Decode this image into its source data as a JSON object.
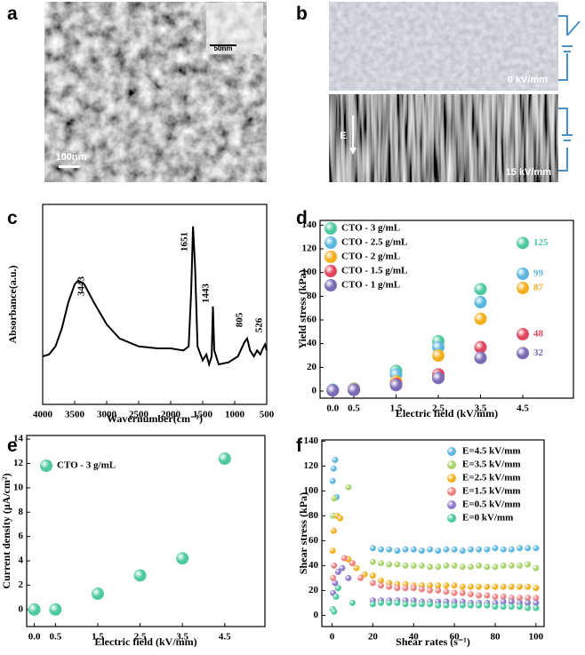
{
  "panel_labels": [
    "a",
    "b",
    "c",
    "d",
    "e",
    "f"
  ],
  "images": {
    "a": {
      "scale_bar": "100nm",
      "inset_scale": "50nm"
    },
    "b": {
      "top_label": "0 kV/mm",
      "bottom_label": "15 kV/mm",
      "field_label": "E"
    }
  },
  "chart_data": [
    {
      "type": "line",
      "x_label": "Wavernumber(cm⁻¹)",
      "y_label": "Absorbance(a.u.)",
      "color": "#000000",
      "x": [
        4000,
        3900,
        3800,
        3700,
        3600,
        3500,
        3443,
        3350,
        3200,
        3000,
        2800,
        2500,
        2200,
        2000,
        1800,
        1720,
        1680,
        1651,
        1620,
        1580,
        1500,
        1443,
        1400,
        1360,
        1340,
        1320,
        1250,
        1100,
        950,
        850,
        805,
        760,
        700,
        650,
        600,
        560,
        526,
        500
      ],
      "values": [
        24,
        25,
        29,
        38,
        51,
        60,
        62,
        60,
        51,
        40,
        33,
        29,
        28,
        28,
        27,
        29,
        56,
        89,
        69,
        29,
        22,
        25,
        20,
        24,
        49,
        27,
        20,
        21,
        24,
        31,
        33,
        27,
        24,
        27,
        25,
        28,
        30,
        27
      ],
      "xlim": [
        4000,
        500
      ],
      "xticks": [
        4000,
        3500,
        3000,
        2500,
        2000,
        1500,
        1000,
        500
      ],
      "ylim": [
        0,
        100
      ],
      "annotations": [
        "3443",
        "1651",
        "1443",
        "805",
        "526"
      ]
    },
    {
      "type": "scatter",
      "x_label": "Electric field (kV/mm)",
      "y_label": "Yield stress (kPa)",
      "x": [
        0,
        0.5,
        1.5,
        2.5,
        3.5,
        4.5
      ],
      "series": [
        {
          "name": "CTO - 3 g/mL",
          "color": "#4dc9a0",
          "values": [
            1,
            2,
            17,
            42,
            86,
            125
          ]
        },
        {
          "name": "CTO - 2.5 g/mL",
          "color": "#5bb6e0",
          "values": [
            1,
            2,
            14,
            37,
            75,
            99
          ]
        },
        {
          "name": "CTO - 2 g/mL",
          "color": "#f2b01e",
          "values": [
            0.5,
            1.5,
            8,
            30,
            61,
            87
          ]
        },
        {
          "name": "CTO - 1.5 g/mL",
          "color": "#e0475e",
          "values": [
            0.5,
            1,
            6,
            14,
            37,
            48
          ]
        },
        {
          "name": "CTO - 1 g/mL",
          "color": "#7b6bb5",
          "values": [
            0.5,
            1,
            5,
            11,
            28,
            32
          ]
        }
      ],
      "xlim": [
        -0.3,
        5.7
      ],
      "xticks": [
        {
          "value": 0,
          "label": "0.0"
        },
        0.5,
        1.5,
        2.5,
        3.5,
        4.5
      ],
      "ylim": [
        -6,
        144
      ],
      "yticks": [
        0,
        20,
        40,
        60,
        80,
        100,
        120,
        140
      ]
    },
    {
      "type": "scatter",
      "x_label": "Electric field (kV/mm)",
      "y_label": "Current density (μA/cm²)",
      "x": [
        0,
        0.5,
        1.5,
        2.5,
        3.5,
        4.5
      ],
      "series": [
        {
          "name": "CTO - 3 g/mL",
          "color": "#4dc9a0",
          "values": [
            0,
            0,
            1.3,
            2.8,
            4.2,
            12.4
          ]
        }
      ],
      "xlim": [
        -0.18,
        5.45
      ],
      "xticks": [
        {
          "value": 0,
          "label": "0.0"
        },
        0.5,
        1.5,
        2.5,
        3.5,
        4.5
      ],
      "ylim": [
        -1.4,
        14.3
      ],
      "yticks": [
        0,
        2,
        4,
        6,
        8,
        10,
        12,
        14
      ]
    },
    {
      "type": "scatter",
      "x_label": "Shear rates (s⁻¹)",
      "y_label": "Shear stress (kPa)",
      "series": [
        {
          "name": "E=4.5 kV/mm",
          "color": "#5bb6e0",
          "x": [
            0.3,
            0.8,
            1.5,
            2.2,
            20,
            24,
            28,
            32,
            36,
            40,
            44,
            48,
            52,
            56,
            60,
            64,
            68,
            72,
            76,
            80,
            84,
            88,
            92,
            96,
            100
          ],
          "values": [
            108,
            118,
            125,
            95,
            54,
            53,
            53,
            52,
            53,
            53,
            52,
            53,
            52,
            53,
            53,
            52,
            53,
            53,
            53,
            54,
            53,
            53,
            54,
            54,
            54
          ]
        },
        {
          "name": "E=3.5 kV/mm",
          "color": "#a8d26a",
          "x": [
            0.5,
            1,
            8,
            20,
            24,
            28,
            32,
            36,
            40,
            44,
            48,
            52,
            56,
            60,
            64,
            68,
            72,
            76,
            80,
            84,
            88,
            92,
            96,
            100
          ],
          "values": [
            80,
            94,
            103,
            43,
            42,
            41,
            41,
            40,
            40,
            40,
            39,
            39,
            40,
            40,
            39,
            39,
            40,
            39,
            39,
            40,
            40,
            40,
            41,
            38
          ]
        },
        {
          "name": "E=2.5 kV/mm",
          "color": "#f2b01e",
          "x": [
            0.3,
            0.8,
            2.5,
            4,
            8,
            12,
            16,
            20,
            24,
            28,
            32,
            36,
            40,
            44,
            48,
            52,
            56,
            60,
            64,
            68,
            72,
            76,
            80,
            84,
            88,
            92,
            96,
            100
          ],
          "values": [
            52,
            68,
            80,
            78,
            45,
            38,
            33,
            32,
            28,
            26,
            25,
            25,
            24,
            24,
            24,
            24,
            24,
            24,
            23,
            23,
            23,
            23,
            23,
            23,
            23,
            23,
            23,
            22
          ]
        },
        {
          "name": "E=1.5 kV/mm",
          "color": "#f08080",
          "x": [
            0.5,
            1,
            6,
            10,
            14,
            20,
            24,
            28,
            32,
            36,
            40,
            44,
            48,
            52,
            56,
            60,
            64,
            68,
            72,
            76,
            80,
            84,
            88,
            92,
            96,
            100
          ],
          "values": [
            30,
            40,
            46,
            42,
            30,
            26,
            24,
            23,
            22,
            22,
            22,
            21,
            20,
            20,
            19,
            18,
            18,
            17,
            16,
            16,
            15,
            15,
            14,
            14,
            14,
            14
          ]
        },
        {
          "name": "E=0.5 kV/mm",
          "color": "#8e78c8",
          "x": [
            0.5,
            1.5,
            3,
            5,
            8,
            20,
            24,
            28,
            32,
            36,
            40,
            44,
            48,
            52,
            56,
            60,
            64,
            68,
            72,
            76,
            80,
            84,
            88,
            92,
            96,
            100
          ],
          "values": [
            18,
            26,
            35,
            38,
            30,
            12,
            12,
            12,
            12,
            12,
            12,
            11,
            11,
            11,
            11,
            11,
            11,
            10,
            10,
            10,
            10,
            11,
            11,
            10,
            10,
            10
          ]
        },
        {
          "name": "E=0 kV/mm",
          "color": "#4dc9a0",
          "x": [
            0.3,
            1,
            2,
            3,
            10,
            20,
            24,
            28,
            32,
            36,
            40,
            44,
            48,
            52,
            56,
            60,
            64,
            68,
            72,
            76,
            80,
            84,
            88,
            92,
            96,
            100
          ],
          "values": [
            5,
            3,
            15,
            22,
            10,
            9,
            10,
            10,
            10,
            9,
            9,
            9,
            9,
            8,
            8,
            8,
            8,
            8,
            8,
            8,
            7,
            7,
            7,
            7,
            6,
            6
          ]
        }
      ],
      "xlim": [
        -5,
        104
      ],
      "xticks": [
        0,
        20,
        40,
        60,
        80,
        100
      ],
      "ylim": [
        -9,
        141
      ],
      "yticks": [
        0,
        20,
        40,
        60,
        80,
        100,
        120,
        140
      ]
    }
  ]
}
